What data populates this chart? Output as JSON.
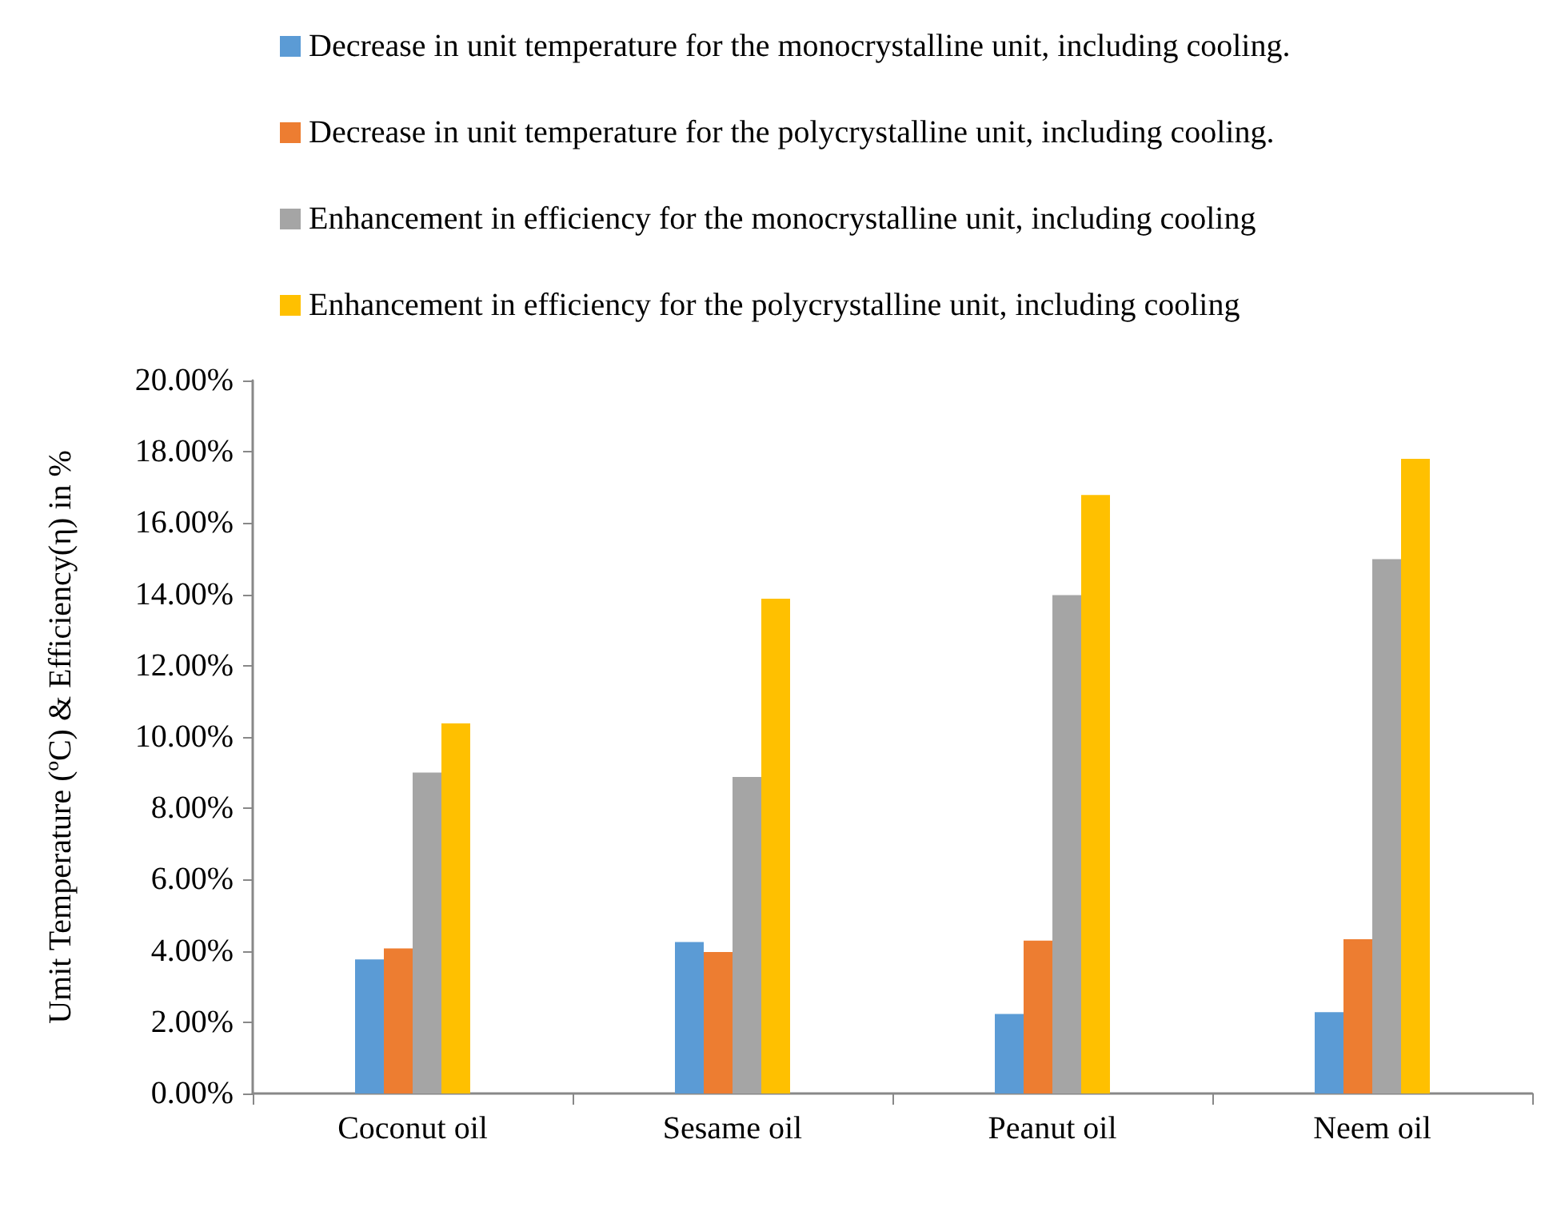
{
  "chart_data": {
    "type": "bar",
    "ylabel": "Umit Temperature (ºC) & Efficiency(η) in %",
    "categories": [
      "Coconut oil",
      "Sesame oil",
      "Peanut oil",
      "Neem oil"
    ],
    "series": [
      {
        "name": "Decrease in unit temperature for the monocrystalline unit, including cooling.",
        "color": "#5b9bd5",
        "values": [
          3.76,
          4.25,
          2.23,
          2.28
        ]
      },
      {
        "name": "Decrease in unit temperature for the polycrystalline unit, including cooling.",
        "color": "#ed7d31",
        "values": [
          4.07,
          3.97,
          4.29,
          4.33
        ]
      },
      {
        "name": "Enhancement in efficiency for the monocrystalline unit, including cooling",
        "color": "#a5a5a5",
        "values": [
          9.0,
          8.88,
          13.98,
          14.99
        ]
      },
      {
        "name": "Enhancement in efficiency for the polycrystalline unit, including cooling",
        "color": "#ffc000",
        "values": [
          10.38,
          13.88,
          16.79,
          17.8
        ]
      }
    ],
    "ylim": [
      0,
      20
    ],
    "yticks": [
      {
        "value": 0,
        "label": "0.00%"
      },
      {
        "value": 2,
        "label": "2.00%"
      },
      {
        "value": 4,
        "label": "4.00%"
      },
      {
        "value": 6,
        "label": "6.00%"
      },
      {
        "value": 8,
        "label": "8.00%"
      },
      {
        "value": 10,
        "label": "10.00%"
      },
      {
        "value": 12,
        "label": "12.00%"
      },
      {
        "value": 14,
        "label": "14.00%"
      },
      {
        "value": 16,
        "label": "16.00%"
      },
      {
        "value": 18,
        "label": "18.00%"
      },
      {
        "value": 20,
        "label": "20.00%"
      }
    ],
    "grid": false,
    "legend": "top"
  }
}
